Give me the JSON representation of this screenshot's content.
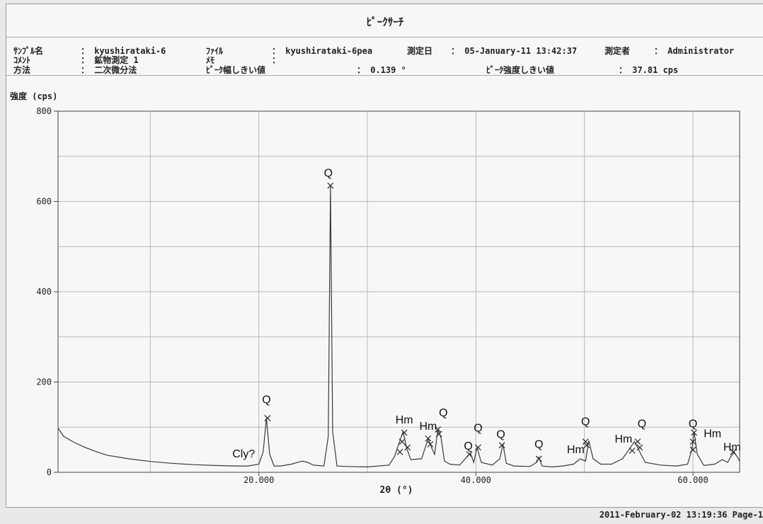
{
  "header": {
    "title": "ﾋﾟｰｸｻｰﾁ",
    "row1": {
      "sample_label": "ｻﾝﾌﾟﾙ名",
      "sample_value": "： kyushirataki-6",
      "file_label": "ﾌｧｲﾙ",
      "file_value": "： kyushirataki-6pea",
      "date_label": "測定日",
      "date_value": "： 05-January-11  13:42:37",
      "operator_label": "測定者",
      "operator_value": "： Administrator"
    },
    "row2": {
      "comment_label": "ｺﾒﾝﾄ",
      "comment_value": "： 鉱物測定 1",
      "memo_label": "ﾒﾓ",
      "memo_value": "："
    },
    "row3": {
      "method_label": "方法",
      "method_value": "： 二次微分法",
      "width_label": "ﾋﾟｰｸ幅しきい値",
      "width_value": "： 0.139 °",
      "intensity_label": "ﾋﾟｰｸ強度しきい値",
      "intensity_value": "： 37.81 cps"
    }
  },
  "footer": {
    "timestamp": "2011-February-02  13:19:36  Page-1"
  },
  "chart_data": {
    "type": "line",
    "ylabel": "強度 (cps)",
    "xlabel": "2θ (°)",
    "xlim": [
      1.5,
      64.3
    ],
    "ylim": [
      0,
      800
    ],
    "x_ticks": [
      20,
      40,
      60
    ],
    "x_tick_labels": [
      "20.000",
      "40.000",
      "60.000"
    ],
    "y_ticks": [
      0,
      200,
      400,
      600,
      800
    ],
    "y_tick_labels": [
      "0",
      "200",
      "400",
      "600",
      "800"
    ],
    "grid": true,
    "line_color": "#3a3a3a",
    "series": [
      {
        "x": [
          1.5,
          2,
          3,
          4,
          5,
          6,
          8,
          10,
          12,
          14,
          16,
          18,
          19,
          20,
          20.4,
          20.7,
          21,
          21.4,
          22,
          23,
          24,
          24.5,
          25,
          26,
          26.4,
          26.6,
          26.8,
          27.2,
          28,
          30,
          32,
          32.5,
          33,
          33.3,
          33.6,
          34,
          35,
          35.6,
          35.9,
          36.2,
          36.5,
          36.8,
          37.1,
          37.6,
          38.5,
          39.2,
          39.5,
          39.8,
          40.1,
          40.5,
          41.5,
          42.2,
          42.5,
          42.8,
          43.5,
          45,
          45.6,
          45.8,
          46.1,
          47,
          48,
          49,
          49.6,
          50.1,
          50.4,
          50.8,
          51.5,
          52.5,
          53.5,
          54.1,
          54.6,
          54.9,
          55.2,
          55.6,
          57,
          58.5,
          59.5,
          59.9,
          60.1,
          60.4,
          61,
          62,
          62.7,
          63.2,
          63.5,
          63.8,
          64.3
        ],
        "y": [
          98,
          80,
          66,
          55,
          46,
          38,
          30,
          24,
          20,
          17,
          15,
          14,
          14,
          18,
          45,
          120,
          40,
          14,
          14,
          18,
          25,
          22,
          16,
          14,
          80,
          635,
          90,
          14,
          13,
          12,
          16,
          35,
          70,
          90,
          55,
          28,
          30,
          75,
          55,
          40,
          95,
          75,
          25,
          18,
          16,
          35,
          42,
          22,
          55,
          22,
          16,
          30,
          62,
          20,
          14,
          13,
          22,
          33,
          14,
          12,
          14,
          18,
          30,
          25,
          70,
          30,
          18,
          18,
          30,
          50,
          68,
          55,
          40,
          22,
          16,
          14,
          18,
          50,
          90,
          40,
          15,
          18,
          28,
          22,
          35,
          45,
          25
        ]
      }
    ],
    "peak_markers": [
      {
        "x": 20.8,
        "y": 120
      },
      {
        "x": 26.6,
        "y": 635
      },
      {
        "x": 33.0,
        "y": 45
      },
      {
        "x": 33.2,
        "y": 68
      },
      {
        "x": 33.4,
        "y": 88
      },
      {
        "x": 33.7,
        "y": 55
      },
      {
        "x": 35.6,
        "y": 75
      },
      {
        "x": 35.8,
        "y": 62
      },
      {
        "x": 36.5,
        "y": 95
      },
      {
        "x": 36.6,
        "y": 85
      },
      {
        "x": 39.4,
        "y": 40
      },
      {
        "x": 40.2,
        "y": 55
      },
      {
        "x": 42.4,
        "y": 60
      },
      {
        "x": 45.8,
        "y": 30
      },
      {
        "x": 50.1,
        "y": 68
      },
      {
        "x": 50.2,
        "y": 60
      },
      {
        "x": 54.4,
        "y": 48
      },
      {
        "x": 54.9,
        "y": 68
      },
      {
        "x": 55.1,
        "y": 55
      },
      {
        "x": 60.0,
        "y": 50
      },
      {
        "x": 60.0,
        "y": 68
      },
      {
        "x": 60.1,
        "y": 88
      },
      {
        "x": 63.7,
        "y": 45
      }
    ],
    "annotations": [
      {
        "text": "Cly?",
        "x": 18.6,
        "y": 33
      },
      {
        "text": "Q",
        "x": 20.7,
        "y": 153
      },
      {
        "text": "Q",
        "x": 26.4,
        "y": 655
      },
      {
        "text": "Hm",
        "x": 33.4,
        "y": 108
      },
      {
        "text": "Hm",
        "x": 35.6,
        "y": 94
      },
      {
        "text": "Q",
        "x": 37.0,
        "y": 124
      },
      {
        "text": "Q",
        "x": 39.3,
        "y": 50
      },
      {
        "text": "Q",
        "x": 40.2,
        "y": 90
      },
      {
        "text": "Q",
        "x": 42.3,
        "y": 76
      },
      {
        "text": "Q",
        "x": 45.8,
        "y": 54
      },
      {
        "text": "Hm",
        "x": 49.2,
        "y": 42
      },
      {
        "text": "Q",
        "x": 50.1,
        "y": 104
      },
      {
        "text": "Hm",
        "x": 53.6,
        "y": 66
      },
      {
        "text": "Q",
        "x": 55.3,
        "y": 100
      },
      {
        "text": "Q",
        "x": 60.0,
        "y": 100
      },
      {
        "text": "Hm",
        "x": 61.8,
        "y": 78
      },
      {
        "text": "Hm",
        "x": 63.6,
        "y": 48
      }
    ]
  }
}
